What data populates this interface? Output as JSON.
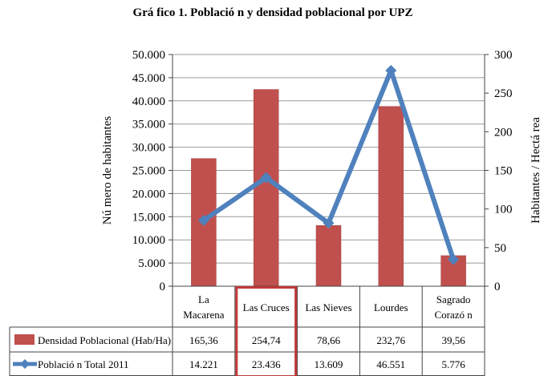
{
  "chart_data": {
    "type": "bar+line",
    "title": "Grá fico 1. Població n y densidad poblacional por UPZ",
    "categories": [
      [
        "La",
        "Macarena"
      ],
      [
        "Las Cruces"
      ],
      [
        "Las Nieves"
      ],
      [
        "Lourdes"
      ],
      [
        "Sagrado",
        "Corazó n"
      ]
    ],
    "ylabel_left": "Nú mero de habitantes",
    "ylabel_right": "Habitantes / Hectá rea",
    "ylim_left": [
      0,
      50000
    ],
    "ylim_right": [
      0,
      300
    ],
    "yticks_left": [
      "0",
      "5.000",
      "10.000",
      "15.000",
      "20.000",
      "25.000",
      "30.000",
      "35.000",
      "40.000",
      "45.000",
      "50.000"
    ],
    "yticks_right": [
      "0",
      "50",
      "100",
      "150",
      "200",
      "250",
      "300"
    ],
    "series": [
      {
        "name": "Densidad Poblacional (Hab/Ha)",
        "kind": "bar",
        "axis": "left",
        "color": "#c0504d",
        "values": [
          27560,
          42457,
          13110,
          38793,
          6593
        ],
        "table_values": [
          "165,36",
          "254,74",
          "78,66",
          "232,76",
          "39,56"
        ]
      },
      {
        "name": "Població n Total 2011",
        "kind": "line",
        "axis": "right",
        "color": "#4f81bd",
        "values": [
          85.3,
          140.6,
          81.7,
          279.3,
          34.7
        ],
        "table_values": [
          "14.221",
          "23.436",
          "13.609",
          "46.551",
          "5.776"
        ]
      }
    ],
    "highlight_category": 1,
    "highlight_color": "#c0393b",
    "grid": true,
    "legend": "table-left"
  }
}
